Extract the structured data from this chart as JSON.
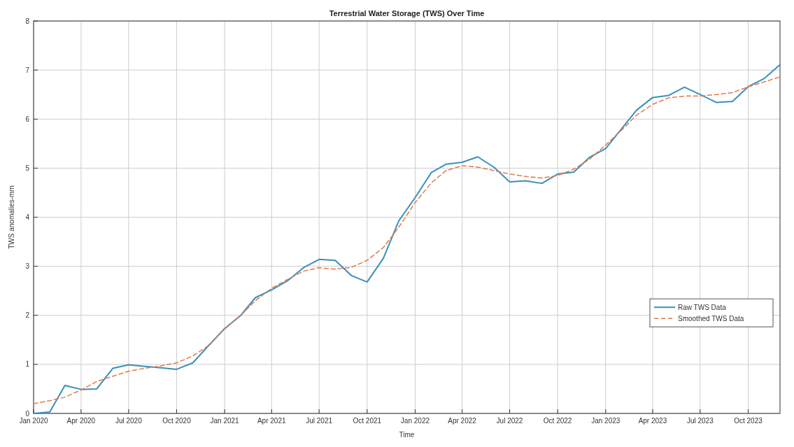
{
  "chart_data": {
    "type": "line",
    "title": "Terrestrial Water Storage (TWS) Over Time",
    "xlabel": "Time",
    "ylabel": "TWS anomalies-mm",
    "x": [
      "2020-01",
      "2020-02",
      "2020-03",
      "2020-04",
      "2020-05",
      "2020-06",
      "2020-07",
      "2020-08",
      "2020-09",
      "2020-10",
      "2020-11",
      "2020-12",
      "2021-01",
      "2021-02",
      "2021-03",
      "2021-04",
      "2021-05",
      "2021-06",
      "2021-07",
      "2021-08",
      "2021-09",
      "2021-10",
      "2021-11",
      "2021-12",
      "2022-01",
      "2022-02",
      "2022-03",
      "2022-04",
      "2022-05",
      "2022-06",
      "2022-07",
      "2022-08",
      "2022-09",
      "2022-10",
      "2022-11",
      "2022-12",
      "2023-01",
      "2023-02",
      "2023-03",
      "2023-04",
      "2023-05",
      "2023-06",
      "2023-07",
      "2023-08",
      "2023-09",
      "2023-10",
      "2023-11",
      "2023-12"
    ],
    "series": [
      {
        "name": "Raw TWS Data",
        "color": "#3b8fba",
        "line_style": "solid",
        "values": [
          0.0,
          0.03,
          0.57,
          0.49,
          0.5,
          0.92,
          0.99,
          0.96,
          0.93,
          0.9,
          1.03,
          1.38,
          1.73,
          2.0,
          2.36,
          2.52,
          2.7,
          2.97,
          3.14,
          3.12,
          2.81,
          2.68,
          3.16,
          3.93,
          4.4,
          4.91,
          5.08,
          5.12,
          5.23,
          5.02,
          4.72,
          4.74,
          4.69,
          4.88,
          4.92,
          5.22,
          5.4,
          5.81,
          6.18,
          6.44,
          6.48,
          6.65,
          6.5,
          6.34,
          6.36,
          6.66,
          6.83,
          7.11
        ]
      },
      {
        "name": "Smoothed TWS Data",
        "color": "#e07a4a",
        "line_style": "dashed",
        "values": [
          0.2,
          0.26,
          0.33,
          0.48,
          0.65,
          0.76,
          0.86,
          0.92,
          0.97,
          1.03,
          1.17,
          1.38,
          1.72,
          2.0,
          2.3,
          2.55,
          2.73,
          2.9,
          2.97,
          2.94,
          2.98,
          3.12,
          3.38,
          3.8,
          4.3,
          4.7,
          4.95,
          5.05,
          5.02,
          4.95,
          4.88,
          4.83,
          4.8,
          4.85,
          4.98,
          5.18,
          5.47,
          5.78,
          6.08,
          6.3,
          6.43,
          6.47,
          6.47,
          6.5,
          6.54,
          6.66,
          6.76,
          6.86
        ]
      }
    ],
    "xlim": [
      "2020-01",
      "2023-12"
    ],
    "xticks": [
      {
        "value": "2020-01",
        "label": "Jan 2020"
      },
      {
        "value": "2020-04",
        "label": "Apr 2020"
      },
      {
        "value": "2020-07",
        "label": "Jul 2020"
      },
      {
        "value": "2020-10",
        "label": "Oct 2020"
      },
      {
        "value": "2021-01",
        "label": "Jan 2021"
      },
      {
        "value": "2021-04",
        "label": "Apr 2021"
      },
      {
        "value": "2021-07",
        "label": "Jul 2021"
      },
      {
        "value": "2021-10",
        "label": "Oct 2021"
      },
      {
        "value": "2022-01",
        "label": "Jan 2022"
      },
      {
        "value": "2022-04",
        "label": "Apr 2022"
      },
      {
        "value": "2022-07",
        "label": "Jul 2022"
      },
      {
        "value": "2022-10",
        "label": "Oct 2022"
      },
      {
        "value": "2023-01",
        "label": "Jan 2023"
      },
      {
        "value": "2023-04",
        "label": "Apr 2023"
      },
      {
        "value": "2023-07",
        "label": "Jul 2023"
      },
      {
        "value": "2023-10",
        "label": "Oct 2023"
      }
    ],
    "ylim": [
      0,
      8
    ],
    "yticks": [
      0,
      1,
      2,
      3,
      4,
      5,
      6,
      7,
      8
    ],
    "grid": true,
    "legend": "right",
    "marker": "none"
  }
}
